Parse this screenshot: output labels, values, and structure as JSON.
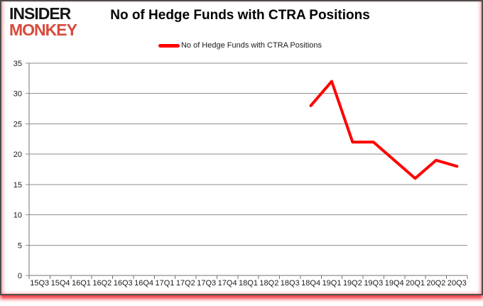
{
  "logo": {
    "line1": "INSIDER",
    "line2": "MONKEY"
  },
  "header": {
    "title": "No of Hedge Funds with CTRA Positions"
  },
  "legend": {
    "label": "No of Hedge Funds with CTRA Positions",
    "color": "#ff0000"
  },
  "colors": {
    "series_red": "#ff0000",
    "logo_red": "#d84b3c",
    "grid": "#8f8f8f",
    "axis": "#767676",
    "text": "#1a1a1a"
  },
  "chart_data": {
    "type": "line",
    "title": "No of Hedge Funds with CTRA Positions",
    "xlabel": "",
    "ylabel": "",
    "categories": [
      "15Q3",
      "15Q4",
      "16Q1",
      "16Q2",
      "16Q3",
      "16Q4",
      "17Q1",
      "17Q2",
      "17Q3",
      "17Q4",
      "18Q1",
      "18Q2",
      "18Q3",
      "18Q4",
      "19Q1",
      "19Q2",
      "19Q3",
      "19Q4",
      "20Q1",
      "20Q2",
      "20Q3"
    ],
    "series": [
      {
        "name": "No of Hedge Funds with CTRA Positions",
        "color": "#ff0000",
        "values": [
          null,
          null,
          null,
          null,
          null,
          null,
          null,
          null,
          null,
          null,
          null,
          null,
          null,
          28,
          32,
          22,
          22,
          19,
          16,
          19,
          18
        ]
      }
    ],
    "ylim": [
      0,
      35
    ],
    "yticks": [
      0,
      5,
      10,
      15,
      20,
      25,
      30,
      35
    ],
    "grid": true,
    "legend_position": "top-center"
  }
}
